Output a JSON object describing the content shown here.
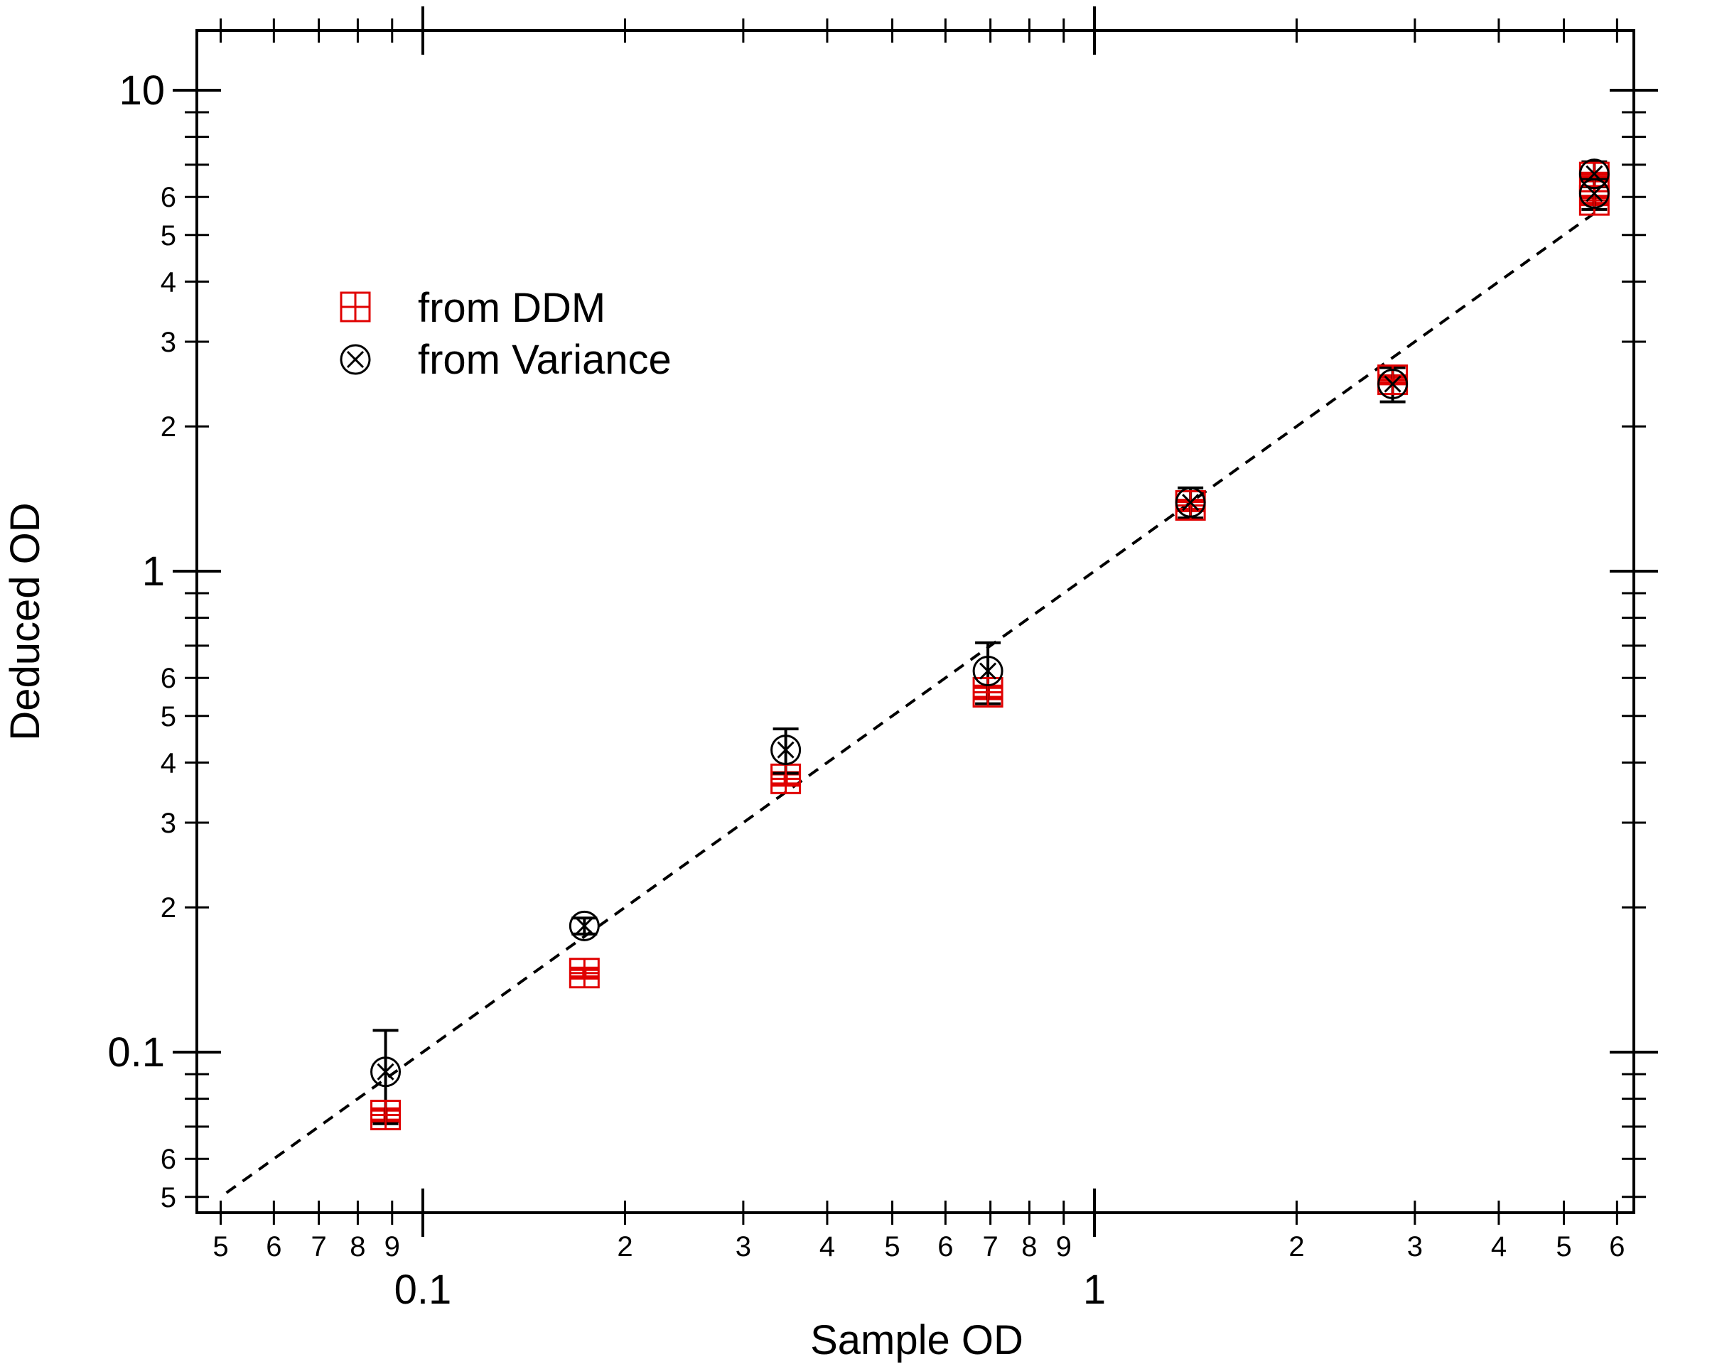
{
  "chart_data": {
    "type": "scatter",
    "title": "",
    "xlabel": "Sample OD",
    "ylabel": "Deduced OD",
    "xscale": "log",
    "yscale": "log",
    "xlim": [
      0.05,
      6.5
    ],
    "ylim": [
      0.045,
      14
    ],
    "x_major_ticks": [
      {
        "value": 0.1,
        "label": "0.1"
      },
      {
        "value": 1,
        "label": "1"
      }
    ],
    "x_minor_ticks": [
      {
        "value": 0.05,
        "label": "5"
      },
      {
        "value": 0.06,
        "label": "6"
      },
      {
        "value": 0.07,
        "label": "7"
      },
      {
        "value": 0.08,
        "label": "8"
      },
      {
        "value": 0.09,
        "label": "9"
      },
      {
        "value": 0.2,
        "label": "2"
      },
      {
        "value": 0.3,
        "label": "3"
      },
      {
        "value": 0.4,
        "label": "4"
      },
      {
        "value": 0.5,
        "label": "5"
      },
      {
        "value": 0.6,
        "label": "6"
      },
      {
        "value": 0.7,
        "label": "7"
      },
      {
        "value": 0.8,
        "label": "8"
      },
      {
        "value": 0.9,
        "label": "9"
      },
      {
        "value": 2,
        "label": "2"
      },
      {
        "value": 3,
        "label": "3"
      },
      {
        "value": 4,
        "label": "4"
      },
      {
        "value": 5,
        "label": "5"
      },
      {
        "value": 6,
        "label": "6"
      }
    ],
    "y_major_ticks": [
      {
        "value": 0.1,
        "label": "0.1"
      },
      {
        "value": 1,
        "label": "1"
      },
      {
        "value": 10,
        "label": "10"
      }
    ],
    "y_minor_ticks": [
      {
        "value": 0.05,
        "label": "5"
      },
      {
        "value": 0.06,
        "label": "6"
      },
      {
        "value": 0.07,
        "label": ""
      },
      {
        "value": 0.08,
        "label": ""
      },
      {
        "value": 0.09,
        "label": ""
      },
      {
        "value": 0.2,
        "label": "2"
      },
      {
        "value": 0.3,
        "label": "3"
      },
      {
        "value": 0.4,
        "label": "4"
      },
      {
        "value": 0.5,
        "label": "5"
      },
      {
        "value": 0.6,
        "label": "6"
      },
      {
        "value": 0.7,
        "label": ""
      },
      {
        "value": 0.8,
        "label": ""
      },
      {
        "value": 0.9,
        "label": ""
      },
      {
        "value": 2,
        "label": "2"
      },
      {
        "value": 3,
        "label": "3"
      },
      {
        "value": 4,
        "label": "4"
      },
      {
        "value": 5,
        "label": "5"
      },
      {
        "value": 6,
        "label": "6"
      },
      {
        "value": 7,
        "label": ""
      },
      {
        "value": 8,
        "label": ""
      },
      {
        "value": 9,
        "label": ""
      }
    ],
    "legend": {
      "placement": "upper-left",
      "entries": [
        {
          "name": "from DDM",
          "marker": "boxed-plus",
          "color": "#e00000"
        },
        {
          "name": "from Variance",
          "marker": "circled-x",
          "color": "#000000"
        }
      ]
    },
    "series": [
      {
        "name": "from DDM",
        "color": "#e00000",
        "marker": "boxed-plus",
        "points": [
          {
            "x": 0.088,
            "y": 0.074,
            "y_err_low": 0.072,
            "y_err_high": 0.076
          },
          {
            "x": 0.174,
            "y": 0.146,
            "y_err_low": 0.143,
            "y_err_high": 0.149
          },
          {
            "x": 0.347,
            "y": 0.37,
            "y_err_low": 0.36,
            "y_err_high": 0.38
          },
          {
            "x": 0.694,
            "y": 0.56,
            "y_err_low": 0.545,
            "y_err_high": 0.575
          },
          {
            "x": 1.39,
            "y": 1.37,
            "y_err_low": 1.34,
            "y_err_high": 1.4
          },
          {
            "x": 2.78,
            "y": 2.5,
            "y_err_low": 2.46,
            "y_err_high": 2.54
          },
          {
            "x": 5.55,
            "y": 5.9,
            "y_err_low": 5.8,
            "y_err_high": 6.0
          },
          {
            "x": 5.55,
            "y": 6.6,
            "y_err_low": 6.5,
            "y_err_high": 6.7
          }
        ]
      },
      {
        "name": "from Variance",
        "color": "#000000",
        "marker": "circled-x",
        "points": [
          {
            "x": 0.088,
            "y": 0.091,
            "y_err_low": 0.071,
            "y_err_high": 0.111
          },
          {
            "x": 0.174,
            "y": 0.183,
            "y_err_low": 0.176,
            "y_err_high": 0.19
          },
          {
            "x": 0.347,
            "y": 0.425,
            "y_err_low": 0.38,
            "y_err_high": 0.47
          },
          {
            "x": 0.694,
            "y": 0.62,
            "y_err_low": 0.53,
            "y_err_high": 0.71
          },
          {
            "x": 1.39,
            "y": 1.39,
            "y_err_low": 1.29,
            "y_err_high": 1.49
          },
          {
            "x": 2.78,
            "y": 2.45,
            "y_err_low": 2.25,
            "y_err_high": 2.65
          },
          {
            "x": 5.55,
            "y": 6.1,
            "y_err_low": 5.65,
            "y_err_high": 6.55
          },
          {
            "x": 5.55,
            "y": 6.7,
            "y_err_low": 6.3,
            "y_err_high": 7.1
          }
        ]
      }
    ],
    "reference_line": {
      "name": "y = x",
      "style": "dashed",
      "color": "#000000",
      "x": [
        0.051,
        5.55
      ],
      "y": [
        0.051,
        5.55
      ]
    }
  }
}
